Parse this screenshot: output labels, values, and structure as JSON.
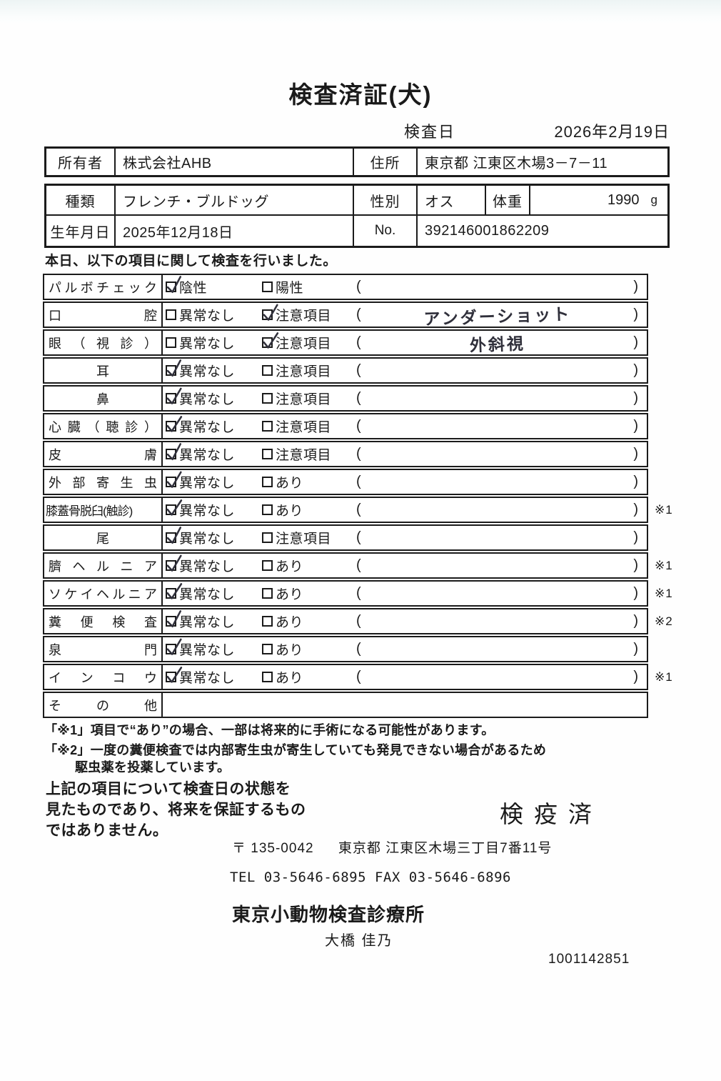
{
  "colors": {
    "ink": "#1a1a1a",
    "border": "#1b1b1b",
    "handwriting_ink": "#30303b"
  },
  "title": "検査済証(犬)",
  "header": {
    "inspection_date_label": "検査日",
    "inspection_date_value": "2026年2月19日"
  },
  "owner_table": {
    "owner_label": "所有者",
    "owner_value": "株式会社AHB",
    "address_label": "住所",
    "address_value": "東京都 江東区木場3－7－11"
  },
  "info_table": {
    "breed_label": "種類",
    "breed_value": "フレンチ・ブルドッグ",
    "sex_label": "性別",
    "sex_value": "オス",
    "weight_label": "体重",
    "weight_value": "1990",
    "weight_unit": "g",
    "birth_label": "生年月日",
    "birth_value": "2025年12月18日",
    "no_label": "No.",
    "no_value": "392146001862209"
  },
  "intro": "本日、以下の項目に関して検査を行いました。",
  "checklist": {
    "paren_open": "(",
    "paren_close": ")",
    "rows": [
      {
        "label": "パルボチェック",
        "layout": "spread",
        "opt1": "陰性",
        "opt1_checked": true,
        "opt2": "陽性",
        "opt2_checked": false,
        "paren_text": "",
        "note": ""
      },
      {
        "label": "口腔",
        "layout": "spread",
        "opt1": "異常なし",
        "opt1_checked": false,
        "opt2": "注意項目",
        "opt2_checked": true,
        "paren_text": "アンダーショット",
        "note": ""
      },
      {
        "label": "眼（視診）",
        "layout": "spread",
        "opt1": "異常なし",
        "opt1_checked": false,
        "opt2": "注意項目",
        "opt2_checked": true,
        "paren_text": "外斜視",
        "note": ""
      },
      {
        "label": "耳",
        "layout": "center",
        "opt1": "異常なし",
        "opt1_checked": true,
        "opt2": "注意項目",
        "opt2_checked": false,
        "paren_text": "",
        "note": ""
      },
      {
        "label": "鼻",
        "layout": "center",
        "opt1": "異常なし",
        "opt1_checked": true,
        "opt2": "注意項目",
        "opt2_checked": false,
        "paren_text": "",
        "note": ""
      },
      {
        "label": "心臓（聴診）",
        "layout": "spread",
        "opt1": "異常なし",
        "opt1_checked": true,
        "opt2": "注意項目",
        "opt2_checked": false,
        "paren_text": "",
        "note": ""
      },
      {
        "label": "皮膚",
        "layout": "spread",
        "opt1": "異常なし",
        "opt1_checked": true,
        "opt2": "注意項目",
        "opt2_checked": false,
        "paren_text": "",
        "note": ""
      },
      {
        "label": "外部寄生虫",
        "layout": "spread",
        "opt1": "異常なし",
        "opt1_checked": true,
        "opt2": "あり",
        "opt2_checked": false,
        "paren_text": "",
        "note": ""
      },
      {
        "label": "膝蓋骨脱臼(触診)",
        "layout": "plain",
        "opt1": "異常なし",
        "opt1_checked": true,
        "opt2": "あり",
        "opt2_checked": false,
        "paren_text": "",
        "note": "※1"
      },
      {
        "label": "尾",
        "layout": "center",
        "opt1": "異常なし",
        "opt1_checked": true,
        "opt2": "注意項目",
        "opt2_checked": false,
        "paren_text": "",
        "note": ""
      },
      {
        "label": "臍ヘルニア",
        "layout": "spread",
        "opt1": "異常なし",
        "opt1_checked": true,
        "opt2": "あり",
        "opt2_checked": false,
        "paren_text": "",
        "note": "※1"
      },
      {
        "label": "ソケイヘルニア",
        "layout": "spread",
        "opt1": "異常なし",
        "opt1_checked": true,
        "opt2": "あり",
        "opt2_checked": false,
        "paren_text": "",
        "note": "※1"
      },
      {
        "label": "糞便検査",
        "layout": "spread",
        "opt1": "異常なし",
        "opt1_checked": true,
        "opt2": "あり",
        "opt2_checked": false,
        "paren_text": "",
        "note": "※2"
      },
      {
        "label": "泉門",
        "layout": "spread",
        "opt1": "異常なし",
        "opt1_checked": true,
        "opt2": "あり",
        "opt2_checked": false,
        "paren_text": "",
        "note": ""
      },
      {
        "label": "インコウ",
        "layout": "spread",
        "opt1": "異常なし",
        "opt1_checked": true,
        "opt2": "あり",
        "opt2_checked": false,
        "paren_text": "",
        "note": "※1"
      },
      {
        "label": "その他",
        "layout": "spread",
        "opt1": null,
        "opt1_checked": false,
        "opt2": null,
        "opt2_checked": false,
        "paren_text": null,
        "note": ""
      }
    ]
  },
  "footnotes": [
    "「※1」項目で“あり”の場合、一部は将来的に手術になる可能性があります。",
    "「※2」一度の糞便検査では内部寄生虫が寄生していても発見できない場合があるため",
    "駆虫薬を投薬しています。"
  ],
  "disclaimer_lines": [
    "上記の項目について検査日の状態を",
    "見たものであり、将来を保証するもの",
    "ではありません。"
  ],
  "stamp": "検疫済",
  "footer": {
    "postal_code": "〒 135-0042",
    "address": "東京都 江東区木場三丁目7番11号",
    "tel_fax": "TEL 03-5646-6895  FAX 03-5646-6896",
    "clinic_name": "東京小動物検査診療所",
    "examiner_name": "大橋 佳乃",
    "serial_number": "1001142851"
  }
}
